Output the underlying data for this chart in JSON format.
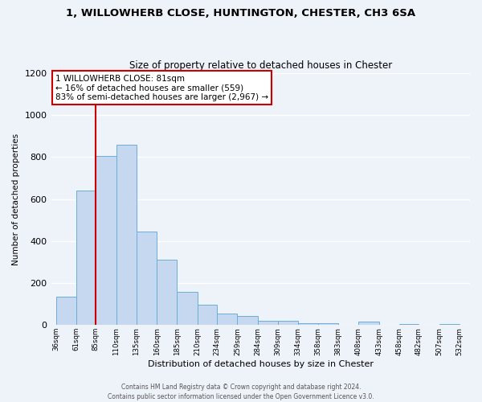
{
  "title": "1, WILLOWHERB CLOSE, HUNTINGTON, CHESTER, CH3 6SA",
  "subtitle": "Size of property relative to detached houses in Chester",
  "xlabel": "Distribution of detached houses by size in Chester",
  "ylabel": "Number of detached properties",
  "bar_left_edges": [
    36,
    61,
    85,
    110,
    135,
    160,
    185,
    210,
    234,
    259,
    284,
    309,
    334,
    358,
    383,
    408,
    433,
    458,
    482,
    507
  ],
  "bar_widths": [
    25,
    24,
    25,
    25,
    25,
    25,
    25,
    24,
    25,
    25,
    25,
    25,
    24,
    25,
    25,
    25,
    25,
    24,
    25,
    25
  ],
  "bar_heights": [
    135,
    640,
    805,
    860,
    445,
    310,
    160,
    95,
    55,
    45,
    20,
    20,
    10,
    10,
    0,
    15,
    0,
    5,
    0,
    5
  ],
  "bar_color": "#c5d8ef",
  "bar_edge_color": "#6aaed6",
  "x_tick_labels": [
    "36sqm",
    "61sqm",
    "85sqm",
    "110sqm",
    "135sqm",
    "160sqm",
    "185sqm",
    "210sqm",
    "234sqm",
    "259sqm",
    "284sqm",
    "309sqm",
    "334sqm",
    "358sqm",
    "383sqm",
    "408sqm",
    "433sqm",
    "458sqm",
    "482sqm",
    "507sqm",
    "532sqm"
  ],
  "x_tick_positions": [
    36,
    61,
    85,
    110,
    135,
    160,
    185,
    210,
    234,
    259,
    284,
    309,
    334,
    358,
    383,
    408,
    433,
    458,
    482,
    507,
    532
  ],
  "xlim": [
    30,
    545
  ],
  "ylim": [
    0,
    1200
  ],
  "yticks": [
    0,
    200,
    400,
    600,
    800,
    1000,
    1200
  ],
  "property_line_x": 85,
  "property_line_color": "#cc0000",
  "annotation_line1": "1 WILLOWHERB CLOSE: 81sqm",
  "annotation_line2": "← 16% of detached houses are smaller (559)",
  "annotation_line3": "83% of semi-detached houses are larger (2,967) →",
  "annotation_box_color": "#cc0000",
  "background_color": "#eef2f9",
  "grid_color": "#ffffff",
  "footer_line1": "Contains HM Land Registry data © Crown copyright and database right 2024.",
  "footer_line2": "Contains public sector information licensed under the Open Government Licence v3.0."
}
